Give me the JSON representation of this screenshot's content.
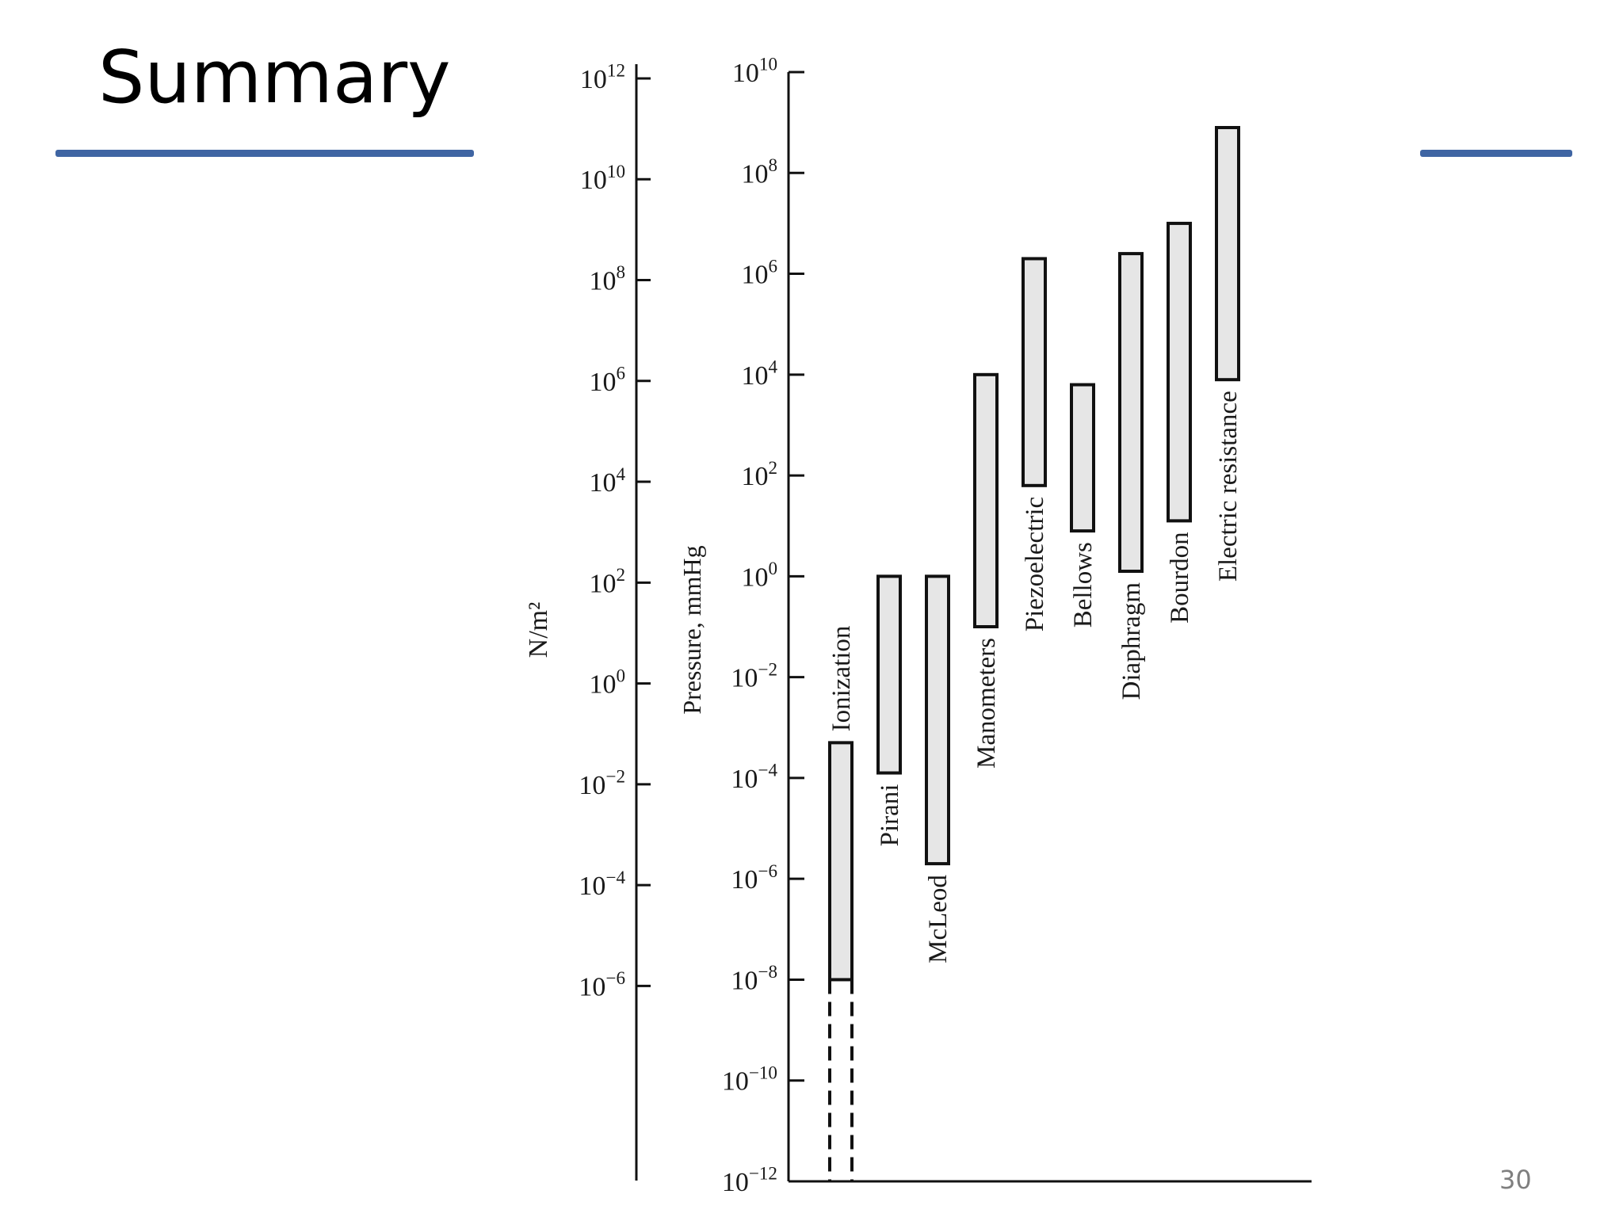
{
  "slide": {
    "title": "Summary",
    "page_number": "30",
    "accent_color": "#3f65a3"
  },
  "chart_data": {
    "type": "bar",
    "subtype": "floating-range",
    "scale": "log10",
    "left_axis": {
      "label": "N/m²",
      "exponents": [
        12,
        10,
        8,
        6,
        4,
        2,
        0,
        -2,
        -4,
        -6
      ]
    },
    "right_axis": {
      "label": "Pressure, mmHg",
      "exponents": [
        10,
        8,
        6,
        4,
        2,
        0,
        -2,
        -4,
        -6,
        -8,
        -10,
        -12
      ],
      "range_exp": [
        -12,
        10
      ]
    },
    "value_units": "log10 mmHg",
    "series": [
      {
        "label": "Ionization",
        "low": -8,
        "high": -3.3,
        "extension_low": -12
      },
      {
        "label": "Pirani",
        "low": -3.9,
        "high": 0
      },
      {
        "label": "McLeod",
        "low": -5.7,
        "high": 0
      },
      {
        "label": "Manometers",
        "low": -1,
        "high": 4
      },
      {
        "label": "Piezoelectric",
        "low": 1.8,
        "high": 6.3
      },
      {
        "label": "Bellows",
        "low": 0.9,
        "high": 3.8
      },
      {
        "label": "Diaphragm",
        "low": 0.1,
        "high": 6.4
      },
      {
        "label": "Bourdon",
        "low": 1.1,
        "high": 7
      },
      {
        "label": "Electric resistance",
        "low": 3.9,
        "high": 8.9
      }
    ]
  }
}
